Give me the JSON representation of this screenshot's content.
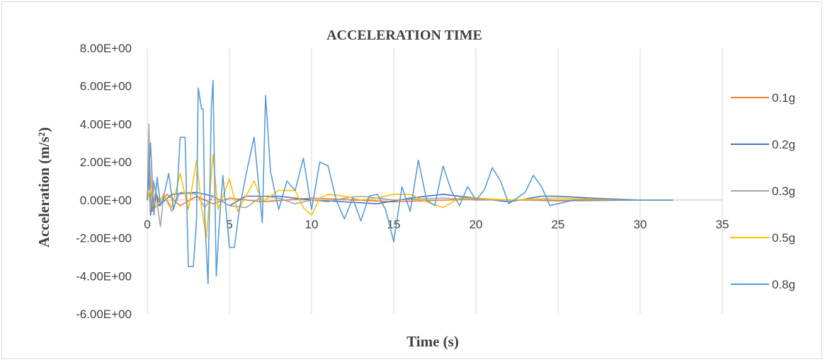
{
  "chart_data": {
    "type": "line",
    "title": "ACCELERATION TIME",
    "xlabel": "Time (s)",
    "ylabel": "Acceleration (m/s²)",
    "xlim": [
      0,
      35
    ],
    "ylim": [
      -6,
      8
    ],
    "x_ticks": [
      "0",
      "5",
      "10",
      "15",
      "20",
      "25",
      "30",
      "35"
    ],
    "y_ticks": [
      "8.00E+00",
      "6.00E+00",
      "4.00E+00",
      "2.00E+00",
      "0.00E+00",
      "-2.00E+00",
      "-4.00E+00",
      "-6.00E+00"
    ],
    "grid": "vertical",
    "legend_position": "right",
    "series": [
      {
        "name": "0.1g",
        "color": "#ed7d31",
        "points": [
          [
            0,
            0
          ],
          [
            0.1,
            2.5
          ],
          [
            0.2,
            1.2
          ],
          [
            0.3,
            -0.6
          ],
          [
            0.5,
            0.4
          ],
          [
            0.8,
            -0.2
          ],
          [
            1.2,
            0.3
          ],
          [
            2,
            -0.3
          ],
          [
            3,
            0.2
          ],
          [
            4,
            -0.2
          ],
          [
            5,
            0.1
          ],
          [
            7,
            -0.1
          ],
          [
            10,
            0.1
          ],
          [
            15,
            -0.1
          ],
          [
            20,
            0.05
          ],
          [
            25,
            -0.05
          ],
          [
            30,
            0
          ],
          [
            32,
            0
          ]
        ]
      },
      {
        "name": "0.2g",
        "color": "#4472c4",
        "points": [
          [
            0,
            0
          ],
          [
            0.1,
            1.5
          ],
          [
            0.2,
            -0.8
          ],
          [
            0.4,
            0.9
          ],
          [
            0.7,
            -0.3
          ],
          [
            1.5,
            0.3
          ],
          [
            3,
            0.4
          ],
          [
            4,
            0.2
          ],
          [
            5,
            -0.3
          ],
          [
            6,
            0.2
          ],
          [
            8,
            0.2
          ],
          [
            10,
            0
          ],
          [
            12,
            -0.1
          ],
          [
            14,
            -0.2
          ],
          [
            16,
            0.1
          ],
          [
            18,
            0.3
          ],
          [
            20,
            0.1
          ],
          [
            22,
            -0.1
          ],
          [
            24,
            0.2
          ],
          [
            25,
            0.2
          ],
          [
            27,
            0.1
          ],
          [
            30,
            0
          ],
          [
            32,
            0
          ]
        ]
      },
      {
        "name": "0.3g",
        "color": "#a5a5a5",
        "points": [
          [
            0,
            0
          ],
          [
            0.1,
            4
          ],
          [
            0.2,
            -0.5
          ],
          [
            0.4,
            1
          ],
          [
            0.8,
            -1.4
          ],
          [
            1,
            0.3
          ],
          [
            1.5,
            -0.6
          ],
          [
            2,
            0.4
          ],
          [
            3,
            0.3
          ],
          [
            3.5,
            -0.4
          ],
          [
            4,
            0.2
          ],
          [
            5,
            -0.3
          ],
          [
            6,
            -0.4
          ],
          [
            7,
            0.2
          ],
          [
            8,
            0.1
          ],
          [
            9,
            -0.2
          ],
          [
            10,
            0
          ],
          [
            11,
            -0.1
          ],
          [
            12,
            0.1
          ],
          [
            13,
            0.2
          ],
          [
            15,
            0
          ],
          [
            18,
            0.1
          ],
          [
            20,
            0
          ],
          [
            25,
            0
          ],
          [
            32,
            0
          ]
        ]
      },
      {
        "name": "0.5g",
        "color": "#ffc000",
        "points": [
          [
            0,
            0
          ],
          [
            0.2,
            0.6
          ],
          [
            0.5,
            -0.4
          ],
          [
            1,
            0.3
          ],
          [
            1.5,
            -0.4
          ],
          [
            2,
            1.4
          ],
          [
            2.5,
            -0.5
          ],
          [
            3,
            2.1
          ],
          [
            3.3,
            -0.4
          ],
          [
            3.6,
            -2
          ],
          [
            4,
            2.4
          ],
          [
            4.3,
            -0.5
          ],
          [
            5,
            1.1
          ],
          [
            5.5,
            -0.6
          ],
          [
            6,
            0.2
          ],
          [
            6.5,
            1
          ],
          [
            7,
            -0.1
          ],
          [
            8,
            0.5
          ],
          [
            9,
            0.5
          ],
          [
            9.5,
            -0.4
          ],
          [
            10,
            -0.8
          ],
          [
            10.5,
            0.1
          ],
          [
            11,
            0.3
          ],
          [
            12,
            0.2
          ],
          [
            13,
            0
          ],
          [
            14,
            0.1
          ],
          [
            15,
            0.3
          ],
          [
            16,
            0.3
          ],
          [
            17,
            -0.1
          ],
          [
            18,
            -0.4
          ],
          [
            19,
            0.1
          ],
          [
            20,
            0.1
          ],
          [
            22,
            0
          ],
          [
            25,
            0.1
          ],
          [
            27,
            0.05
          ],
          [
            30,
            0
          ],
          [
            32,
            0
          ]
        ]
      },
      {
        "name": "0.8g",
        "color": "#5b9bd5",
        "points": [
          [
            0,
            0
          ],
          [
            0.2,
            3
          ],
          [
            0.4,
            -0.8
          ],
          [
            0.6,
            1.2
          ],
          [
            0.8,
            -0.3
          ],
          [
            1,
            0.2
          ],
          [
            1.3,
            1.4
          ],
          [
            1.6,
            -0.5
          ],
          [
            1.8,
            0.2
          ],
          [
            2,
            3.3
          ],
          [
            2.3,
            3.3
          ],
          [
            2.5,
            -3.5
          ],
          [
            2.8,
            -3.5
          ],
          [
            3,
            -1
          ],
          [
            3.1,
            5.9
          ],
          [
            3.3,
            4.8
          ],
          [
            3.4,
            4.8
          ],
          [
            3.5,
            -1
          ],
          [
            3.7,
            -4.4
          ],
          [
            3.9,
            4.9
          ],
          [
            4,
            6.3
          ],
          [
            4.2,
            -4
          ],
          [
            4.4,
            -1
          ],
          [
            4.6,
            1.3
          ],
          [
            5,
            -2.5
          ],
          [
            5.3,
            -2.5
          ],
          [
            5.6,
            -0.5
          ],
          [
            6,
            1.3
          ],
          [
            6.5,
            3.3
          ],
          [
            7,
            -1.2
          ],
          [
            7.2,
            5.5
          ],
          [
            7.5,
            1.5
          ],
          [
            8,
            -0.5
          ],
          [
            8.5,
            1
          ],
          [
            9,
            0.5
          ],
          [
            9.5,
            2.2
          ],
          [
            10,
            -0.5
          ],
          [
            10.5,
            2
          ],
          [
            11,
            1.8
          ],
          [
            11.5,
            0
          ],
          [
            12,
            -1
          ],
          [
            12.5,
            0.1
          ],
          [
            13,
            -1.1
          ],
          [
            13.5,
            0.2
          ],
          [
            14,
            0.3
          ],
          [
            14.5,
            -0.5
          ],
          [
            15,
            -2.2
          ],
          [
            15.5,
            0.7
          ],
          [
            16,
            -0.6
          ],
          [
            16.5,
            2.1
          ],
          [
            17,
            0
          ],
          [
            17.5,
            -0.3
          ],
          [
            18,
            1.8
          ],
          [
            18.5,
            0.5
          ],
          [
            19,
            -0.3
          ],
          [
            19.5,
            0.7
          ],
          [
            20,
            0
          ],
          [
            20.5,
            0.5
          ],
          [
            21,
            1.7
          ],
          [
            21.5,
            1
          ],
          [
            22,
            -0.2
          ],
          [
            22.5,
            0.1
          ],
          [
            23,
            0.4
          ],
          [
            23.5,
            1.3
          ],
          [
            24,
            0.7
          ],
          [
            24.5,
            -0.3
          ],
          [
            25,
            -0.2
          ],
          [
            26,
            0
          ],
          [
            28,
            0
          ],
          [
            32,
            0
          ]
        ]
      }
    ]
  }
}
